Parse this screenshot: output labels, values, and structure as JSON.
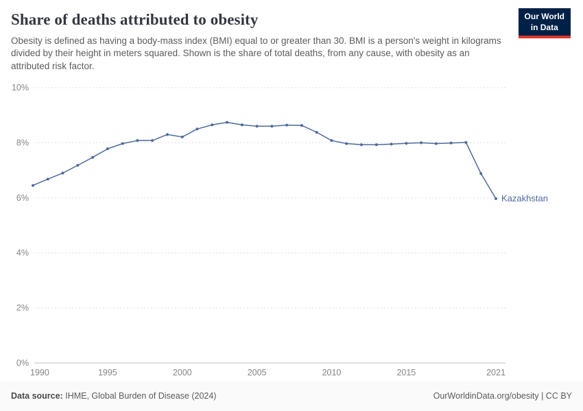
{
  "header": {
    "title": "Share of deaths attributed to obesity",
    "subtitle": "Obesity is defined as having a body-mass index (BMI) equal to or greater than 30. BMI is a person's weight in kilograms divided by their height in meters squared. Shown is the share of total deaths, from any cause, with obesity as an attributed risk factor.",
    "logo": {
      "line1": "Our World",
      "line2": "in Data",
      "bg": "#002147",
      "accent": "#e0362c"
    }
  },
  "chart_data": {
    "type": "line",
    "title": "Share of deaths attributed to obesity",
    "xlabel": "",
    "ylabel": "",
    "ylim": [
      0,
      10
    ],
    "yticks": [
      0,
      2,
      4,
      6,
      8,
      10
    ],
    "ytick_labels": [
      "0%",
      "2%",
      "4%",
      "6%",
      "8%",
      "10%"
    ],
    "xticks": [
      1990,
      1995,
      2000,
      2005,
      2010,
      2015,
      2021
    ],
    "grid": "horizontal-dashed",
    "legend_position": "end-of-line-label",
    "x": [
      1990,
      1991,
      1992,
      1993,
      1994,
      1995,
      1996,
      1997,
      1998,
      1999,
      2000,
      2001,
      2002,
      2003,
      2004,
      2005,
      2006,
      2007,
      2008,
      2009,
      2010,
      2011,
      2012,
      2013,
      2014,
      2015,
      2016,
      2017,
      2018,
      2019,
      2020,
      2021
    ],
    "series": [
      {
        "name": "Kazakhstan",
        "color": "#4c6a9c",
        "values": [
          6.45,
          6.68,
          6.9,
          7.18,
          7.47,
          7.78,
          7.97,
          8.08,
          8.08,
          8.3,
          8.21,
          8.5,
          8.65,
          8.74,
          8.65,
          8.6,
          8.6,
          8.64,
          8.63,
          8.38,
          8.08,
          7.97,
          7.93,
          7.93,
          7.95,
          7.98,
          8.0,
          7.97,
          7.99,
          8.01,
          6.88,
          5.97
        ]
      }
    ],
    "colors": {
      "gridline": "#dedede",
      "axis_line": "#bdbdbd",
      "tick_label": "#858585"
    }
  },
  "footer": {
    "source_label": "Data source:",
    "source_text": "IHME, Global Burden of Disease (2024)",
    "right": "OurWorldinData.org/obesity | CC BY"
  }
}
